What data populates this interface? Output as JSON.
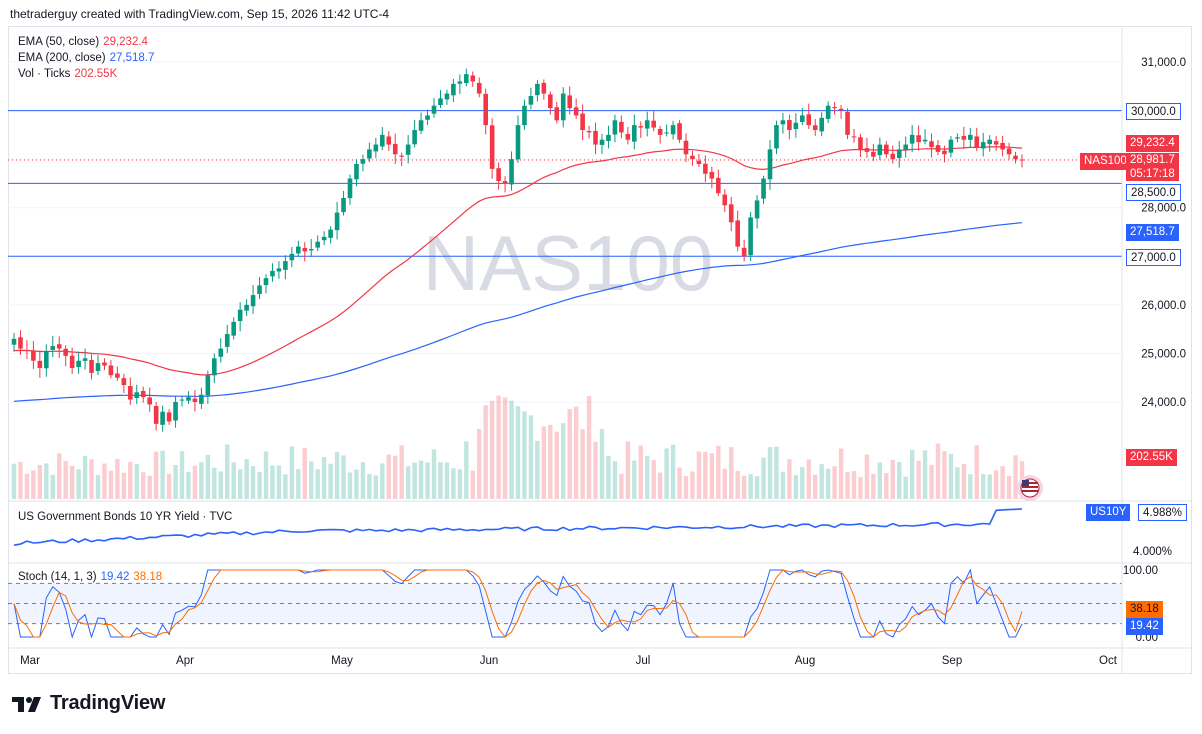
{
  "header": {
    "credit": "thetraderguy created with TradingView.com, Sep 15, 2026 11:42 UTC-4"
  },
  "footer": {
    "brand": "TradingView"
  },
  "watermark": "NAS100",
  "colors": {
    "up": "#089981",
    "down": "#f23645",
    "ema50": "#f23645",
    "ema200": "#2962ff",
    "hline": "#2962ff",
    "yield": "#2962ff",
    "stochK": "#2962ff",
    "stochD": "#ff6d00"
  },
  "legend": {
    "ema50": {
      "name": "EMA (50, close)",
      "value": "29,232.4"
    },
    "ema200": {
      "name": "EMA (200, close)",
      "value": "27,518.7"
    },
    "vol": {
      "name": "Vol · Ticks",
      "value": "202.55K"
    }
  },
  "yield_panel": {
    "title": "US Government Bonds 10 YR Yield · TVC",
    "label": "US10Y",
    "value": "4.988%",
    "tick": "4.000%"
  },
  "stoch_panel": {
    "title": "Stoch (14, 1, 3)",
    "k": "19.42",
    "d": "38.18",
    "ticks": [
      "100.00",
      "0.00"
    ]
  },
  "price_labels": {
    "ema50": "29,232.4",
    "last": "28,981.7",
    "countdown": "05:17:18",
    "symbol": "NAS100",
    "ema200": "27,518.7",
    "vol": "202.55K"
  },
  "hlines": [
    {
      "label": "30,000.0",
      "value": 30000
    },
    {
      "label": "28,500.0",
      "value": 28500
    },
    {
      "label": "27,000.0",
      "value": 27000
    }
  ],
  "price_axis": {
    "ticks": [
      "31,000.0",
      "28,000.0",
      "26,000.0",
      "25,000.0",
      "24,000.0"
    ]
  },
  "time_axis": [
    "Mar",
    "Apr",
    "May",
    "Jun",
    "Jul",
    "Aug",
    "Sep",
    "Oct"
  ],
  "chart_data": {
    "type": "candlestick",
    "symbol": "NAS100",
    "interval": "1D",
    "x_range": [
      "Mar",
      "Oct"
    ],
    "ylim": [
      23500,
      31600
    ],
    "horizontal_levels": [
      30000,
      28500,
      27000
    ],
    "last_price": 28981.7,
    "closes": [
      25300,
      25100,
      25050,
      24850,
      24700,
      25050,
      25150,
      25100,
      24950,
      24700,
      24850,
      24900,
      24600,
      24800,
      24750,
      24550,
      24500,
      24350,
      24050,
      24200,
      24100,
      23950,
      23550,
      23800,
      23600,
      24000,
      24050,
      24100,
      24000,
      24150,
      24550,
      24900,
      25100,
      25400,
      25650,
      25900,
      26000,
      26200,
      26400,
      26550,
      26700,
      26750,
      26900,
      27050,
      27200,
      27100,
      27150,
      27300,
      27400,
      27550,
      27900,
      28200,
      28600,
      28900,
      29000,
      29200,
      29300,
      29500,
      29300,
      29100,
      29050,
      29300,
      29600,
      29800,
      29900,
      30100,
      30250,
      30350,
      30550,
      30600,
      30750,
      30600,
      30350,
      29700,
      28800,
      28550,
      28500,
      29000,
      29700,
      30100,
      30300,
      30550,
      30350,
      30050,
      29800,
      30350,
      30050,
      29900,
      29600,
      29550,
      29300,
      29400,
      29500,
      29800,
      29550,
      29400,
      29700,
      29650,
      29800,
      29650,
      29500,
      29550,
      29700,
      29400,
      29100,
      29000,
      28900,
      28700,
      28600,
      28300,
      28050,
      27700,
      27200,
      27000,
      27800,
      28150,
      28600,
      29200,
      29700,
      29800,
      29600,
      29750,
      29900,
      29700,
      29600,
      29850,
      30100,
      30050,
      30000,
      29500,
      29450,
      29200,
      29150,
      29050,
      29300,
      29100,
      29000,
      29200,
      29300,
      29500,
      29350,
      29400,
      29250,
      29150,
      29100,
      29400,
      29450,
      29400,
      29500,
      29250,
      29350,
      29400,
      29300,
      29200,
      29100,
      29000,
      28981.7
    ],
    "series": [
      {
        "name": "EMA (50, close)",
        "last": 29232.4
      },
      {
        "name": "EMA (200, close)",
        "last": 27518.7
      },
      {
        "name": "Vol · Ticks",
        "last": 202550
      },
      {
        "name": "US Government Bonds 10 YR Yield · TVC",
        "last": 4.988
      },
      {
        "name": "Stoch (14, 1, 3)",
        "k_last": 19.42,
        "d_last": 38.18
      }
    ]
  }
}
